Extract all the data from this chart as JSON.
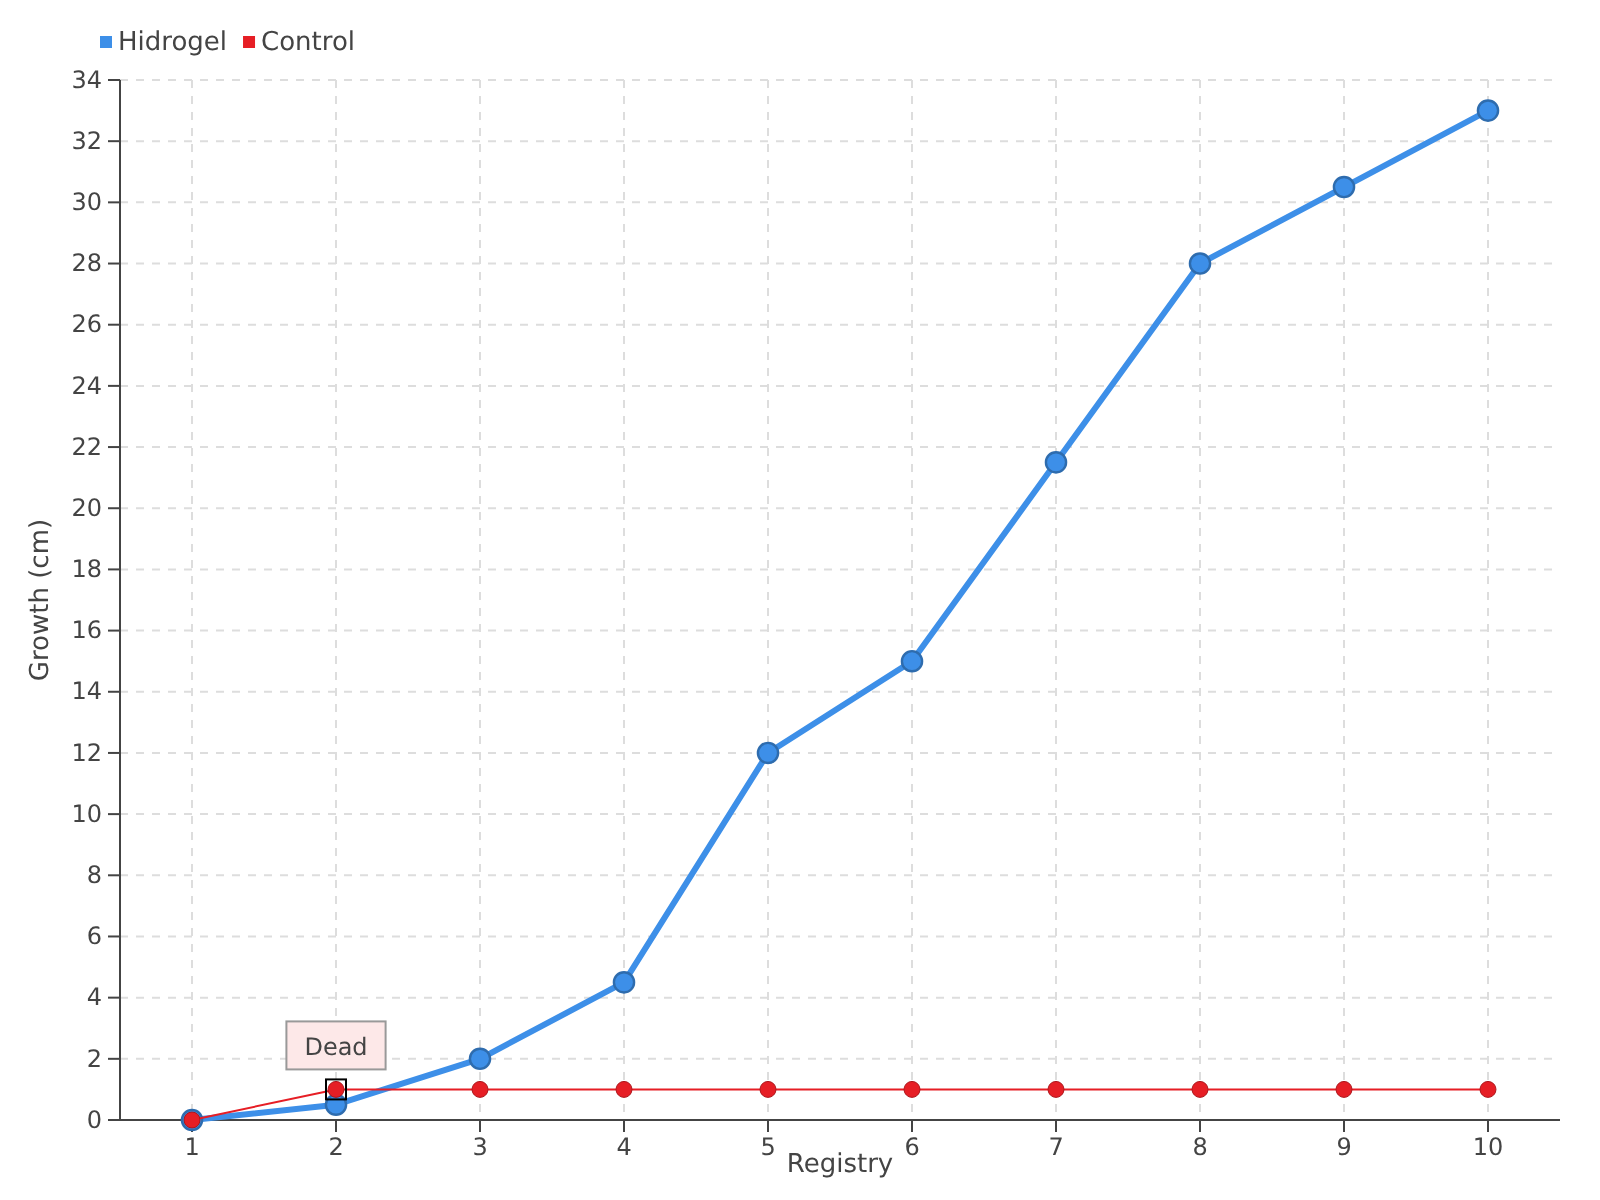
{
  "chart_data": {
    "type": "line",
    "xlabel": "Registry",
    "ylabel": "Growth (cm)",
    "categories": [
      "1",
      "2",
      "3",
      "4",
      "5",
      "6",
      "7",
      "8",
      "9",
      "10"
    ],
    "series": [
      {
        "name": "Hidrogel",
        "color": "#3d8fe8",
        "values": [
          0,
          0.5,
          2,
          4.5,
          12,
          15,
          21.5,
          28,
          30.5,
          33
        ]
      },
      {
        "name": "Control",
        "color": "#e61e25",
        "values": [
          0,
          1,
          1,
          1,
          1,
          1,
          1,
          1,
          1,
          1
        ]
      }
    ],
    "ylim": [
      0,
      34
    ],
    "yticks": [
      0,
      2,
      4,
      6,
      8,
      10,
      12,
      14,
      16,
      18,
      20,
      22,
      24,
      26,
      28,
      30,
      32,
      34
    ],
    "grid": true,
    "legend": "top left",
    "marker": "circle",
    "line_style": "solid",
    "annotations": [
      {
        "text": "Dead",
        "x": "2",
        "y": 1
      }
    ]
  }
}
